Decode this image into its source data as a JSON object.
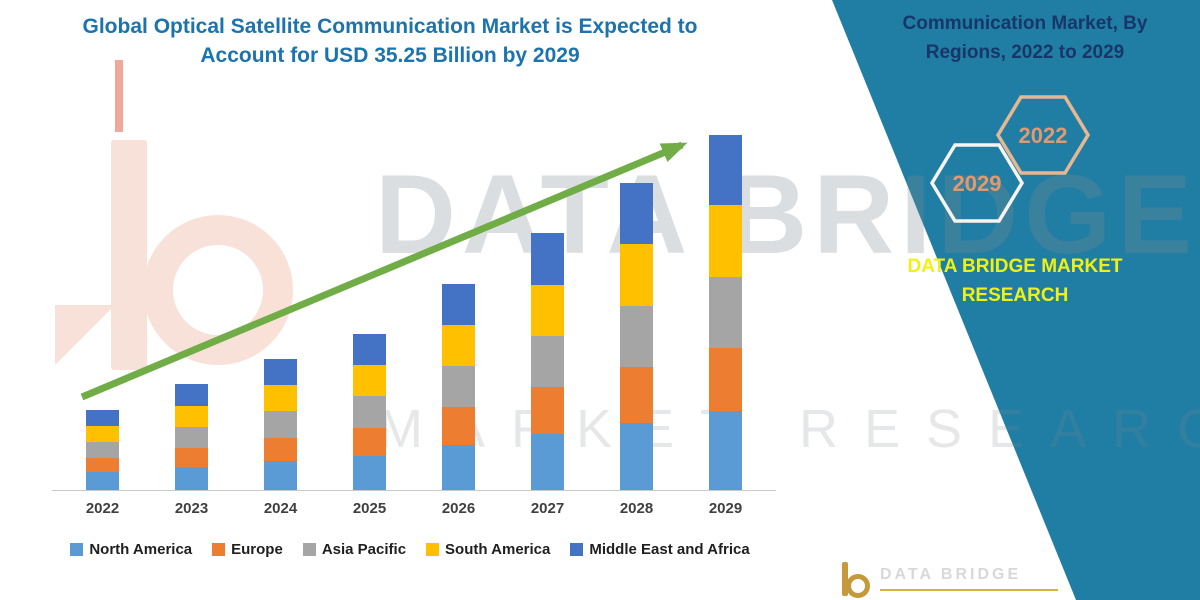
{
  "title": {
    "text": "Global Optical Satellite Communication Market is Expected to Account for USD 35.25 Billion by 2029",
    "color": "#1b74ad"
  },
  "watermark": {
    "line1": "DATA BRIDGE",
    "line2": "MARKET RESEARCH"
  },
  "side_panel": {
    "color": "#207ea4",
    "heading": "Communication Market, By Regions, 2022 to 2029",
    "hex_years": [
      "2029",
      "2022"
    ],
    "hex_year_color": "#e2996e",
    "brand_text": "DATA BRIDGE MARKET RESEARCH",
    "brand_color": "#f0f112",
    "footer_brand": "DATA BRIDGE"
  },
  "chart_data": {
    "type": "bar",
    "stacked": true,
    "title": "Global Optical Satellite Communication Market is Expected to Account for USD 35.25 Billion by 2029",
    "categories": [
      "2022",
      "2023",
      "2024",
      "2025",
      "2026",
      "2027",
      "2028",
      "2029"
    ],
    "series": [
      {
        "name": "North America",
        "color": "#5b9bd5",
        "values": [
          1.8,
          2.3,
          2.9,
          3.4,
          4.5,
          5.6,
          6.7,
          7.8
        ]
      },
      {
        "name": "Europe",
        "color": "#ed7d31",
        "values": [
          1.4,
          1.9,
          2.3,
          2.8,
          3.7,
          4.6,
          5.5,
          6.3
        ]
      },
      {
        "name": "Asia Pacific",
        "color": "#a5a5a5",
        "values": [
          1.6,
          2.1,
          2.6,
          3.1,
          4.1,
          5.1,
          6.1,
          7.1
        ]
      },
      {
        "name": "South America",
        "color": "#ffc000",
        "values": [
          1.6,
          2.1,
          2.6,
          3.1,
          4.1,
          5.1,
          6.1,
          7.1
        ]
      },
      {
        "name": "Middle East and Africa",
        "color": "#4472c4",
        "values": [
          1.6,
          2.1,
          2.6,
          3.1,
          4.1,
          5.1,
          6.1,
          6.95
        ]
      }
    ],
    "totals": [
      8.0,
      10.5,
      13.0,
      15.5,
      20.5,
      25.5,
      30.5,
      35.25
    ],
    "ylim": [
      0,
      36
    ],
    "xlabel": "",
    "ylabel": "",
    "grid": false,
    "legend_position": "bottom",
    "trend_arrow": {
      "show": true,
      "color": "#70ad47"
    }
  }
}
